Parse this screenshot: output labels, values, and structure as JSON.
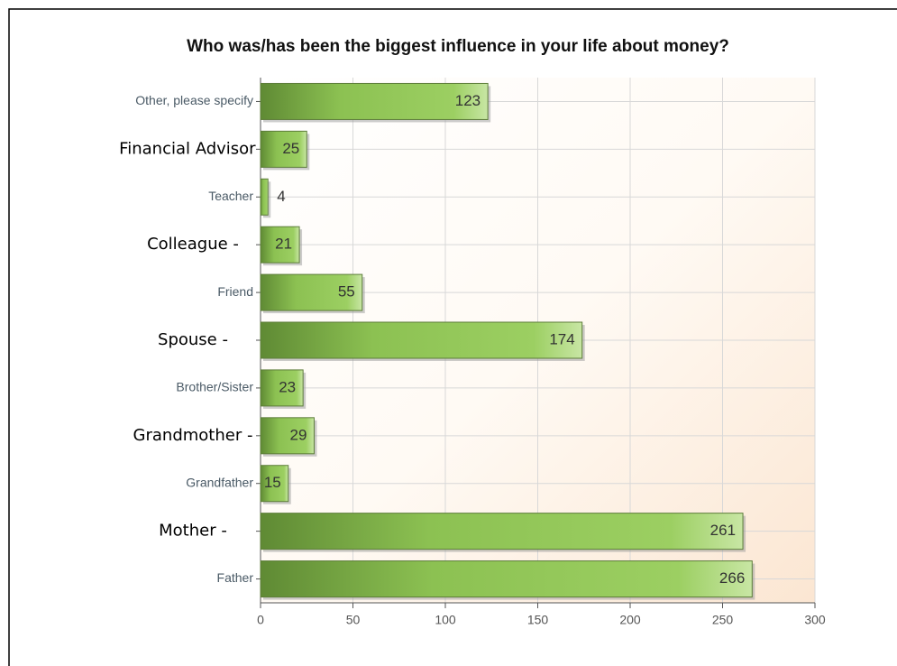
{
  "chart_data": {
    "type": "bar",
    "orientation": "horizontal",
    "title": "Who was/has been the biggest influence in your life about money?",
    "categories": [
      "Other, please specify",
      "Financial Advisor -",
      "Teacher",
      "Colleague -",
      "Friend",
      "Spouse -",
      "Brother/Sister",
      "Grandmother -",
      "Grandfather",
      "Mother -",
      "Father"
    ],
    "values": [
      123,
      25,
      4,
      21,
      55,
      174,
      23,
      29,
      15,
      261,
      266
    ],
    "color": "#8cc152",
    "xlim": [
      0,
      300
    ],
    "xticks": [
      0,
      50,
      100,
      150,
      200,
      250,
      300
    ],
    "grid": true
  }
}
